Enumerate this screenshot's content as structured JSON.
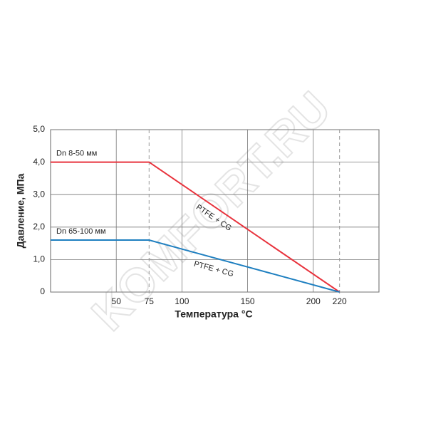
{
  "chart_data": {
    "type": "line",
    "xlabel": "Температура °С",
    "ylabel": "Давление, МПа",
    "x": [
      0,
      75,
      220
    ],
    "series": [
      {
        "name": "Dn 8-50 мм",
        "color": "#e8323c",
        "values": [
          4,
          4,
          0
        ]
      },
      {
        "name": "Dn 65-100 мм",
        "color": "#1e7fc0",
        "values": [
          1.6,
          1.6,
          0
        ]
      }
    ],
    "annotations": [
      "PTFE + CG",
      "PTFE + CG"
    ],
    "xlim": [
      0,
      250
    ],
    "xticks": [
      50,
      75,
      100,
      150,
      200,
      220
    ],
    "reference_x": [
      75,
      220
    ],
    "ylim": [
      0,
      5
    ],
    "yticks": [
      0,
      {
        "value": 1,
        "label": "1,0"
      },
      {
        "value": 2,
        "label": "2,0"
      },
      {
        "value": 3,
        "label": "3,0"
      },
      {
        "value": 4,
        "label": "4,0"
      },
      {
        "value": 5,
        "label": "5,0"
      }
    ],
    "grid": true,
    "watermark": "KOMFORT.RU"
  }
}
